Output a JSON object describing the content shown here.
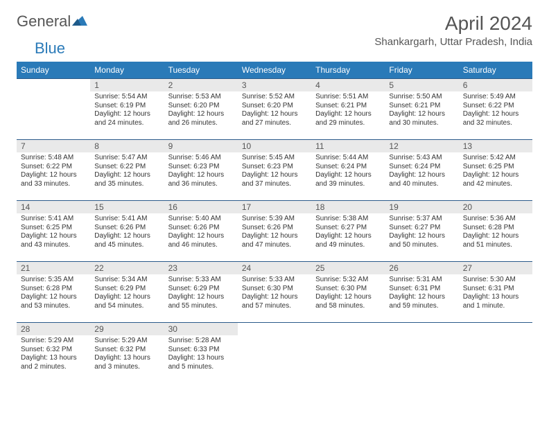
{
  "brand": {
    "word1": "General",
    "word2": "Blue"
  },
  "title": "April 2024",
  "location": "Shankargarh, Uttar Pradesh, India",
  "colors": {
    "header_bg": "#2a7ab8",
    "header_text": "#ffffff",
    "daynum_bg": "#e9e9e9",
    "cell_border": "#2a5a8a",
    "body_text": "#333333",
    "title_text": "#555555"
  },
  "dayHeaders": [
    "Sunday",
    "Monday",
    "Tuesday",
    "Wednesday",
    "Thursday",
    "Friday",
    "Saturday"
  ],
  "weeks": [
    [
      null,
      {
        "n": "1",
        "sr": "Sunrise: 5:54 AM",
        "ss": "Sunset: 6:19 PM",
        "dl": "Daylight: 12 hours and 24 minutes."
      },
      {
        "n": "2",
        "sr": "Sunrise: 5:53 AM",
        "ss": "Sunset: 6:20 PM",
        "dl": "Daylight: 12 hours and 26 minutes."
      },
      {
        "n": "3",
        "sr": "Sunrise: 5:52 AM",
        "ss": "Sunset: 6:20 PM",
        "dl": "Daylight: 12 hours and 27 minutes."
      },
      {
        "n": "4",
        "sr": "Sunrise: 5:51 AM",
        "ss": "Sunset: 6:21 PM",
        "dl": "Daylight: 12 hours and 29 minutes."
      },
      {
        "n": "5",
        "sr": "Sunrise: 5:50 AM",
        "ss": "Sunset: 6:21 PM",
        "dl": "Daylight: 12 hours and 30 minutes."
      },
      {
        "n": "6",
        "sr": "Sunrise: 5:49 AM",
        "ss": "Sunset: 6:22 PM",
        "dl": "Daylight: 12 hours and 32 minutes."
      }
    ],
    [
      {
        "n": "7",
        "sr": "Sunrise: 5:48 AM",
        "ss": "Sunset: 6:22 PM",
        "dl": "Daylight: 12 hours and 33 minutes."
      },
      {
        "n": "8",
        "sr": "Sunrise: 5:47 AM",
        "ss": "Sunset: 6:22 PM",
        "dl": "Daylight: 12 hours and 35 minutes."
      },
      {
        "n": "9",
        "sr": "Sunrise: 5:46 AM",
        "ss": "Sunset: 6:23 PM",
        "dl": "Daylight: 12 hours and 36 minutes."
      },
      {
        "n": "10",
        "sr": "Sunrise: 5:45 AM",
        "ss": "Sunset: 6:23 PM",
        "dl": "Daylight: 12 hours and 37 minutes."
      },
      {
        "n": "11",
        "sr": "Sunrise: 5:44 AM",
        "ss": "Sunset: 6:24 PM",
        "dl": "Daylight: 12 hours and 39 minutes."
      },
      {
        "n": "12",
        "sr": "Sunrise: 5:43 AM",
        "ss": "Sunset: 6:24 PM",
        "dl": "Daylight: 12 hours and 40 minutes."
      },
      {
        "n": "13",
        "sr": "Sunrise: 5:42 AM",
        "ss": "Sunset: 6:25 PM",
        "dl": "Daylight: 12 hours and 42 minutes."
      }
    ],
    [
      {
        "n": "14",
        "sr": "Sunrise: 5:41 AM",
        "ss": "Sunset: 6:25 PM",
        "dl": "Daylight: 12 hours and 43 minutes."
      },
      {
        "n": "15",
        "sr": "Sunrise: 5:41 AM",
        "ss": "Sunset: 6:26 PM",
        "dl": "Daylight: 12 hours and 45 minutes."
      },
      {
        "n": "16",
        "sr": "Sunrise: 5:40 AM",
        "ss": "Sunset: 6:26 PM",
        "dl": "Daylight: 12 hours and 46 minutes."
      },
      {
        "n": "17",
        "sr": "Sunrise: 5:39 AM",
        "ss": "Sunset: 6:26 PM",
        "dl": "Daylight: 12 hours and 47 minutes."
      },
      {
        "n": "18",
        "sr": "Sunrise: 5:38 AM",
        "ss": "Sunset: 6:27 PM",
        "dl": "Daylight: 12 hours and 49 minutes."
      },
      {
        "n": "19",
        "sr": "Sunrise: 5:37 AM",
        "ss": "Sunset: 6:27 PM",
        "dl": "Daylight: 12 hours and 50 minutes."
      },
      {
        "n": "20",
        "sr": "Sunrise: 5:36 AM",
        "ss": "Sunset: 6:28 PM",
        "dl": "Daylight: 12 hours and 51 minutes."
      }
    ],
    [
      {
        "n": "21",
        "sr": "Sunrise: 5:35 AM",
        "ss": "Sunset: 6:28 PM",
        "dl": "Daylight: 12 hours and 53 minutes."
      },
      {
        "n": "22",
        "sr": "Sunrise: 5:34 AM",
        "ss": "Sunset: 6:29 PM",
        "dl": "Daylight: 12 hours and 54 minutes."
      },
      {
        "n": "23",
        "sr": "Sunrise: 5:33 AM",
        "ss": "Sunset: 6:29 PM",
        "dl": "Daylight: 12 hours and 55 minutes."
      },
      {
        "n": "24",
        "sr": "Sunrise: 5:33 AM",
        "ss": "Sunset: 6:30 PM",
        "dl": "Daylight: 12 hours and 57 minutes."
      },
      {
        "n": "25",
        "sr": "Sunrise: 5:32 AM",
        "ss": "Sunset: 6:30 PM",
        "dl": "Daylight: 12 hours and 58 minutes."
      },
      {
        "n": "26",
        "sr": "Sunrise: 5:31 AM",
        "ss": "Sunset: 6:31 PM",
        "dl": "Daylight: 12 hours and 59 minutes."
      },
      {
        "n": "27",
        "sr": "Sunrise: 5:30 AM",
        "ss": "Sunset: 6:31 PM",
        "dl": "Daylight: 13 hours and 1 minute."
      }
    ],
    [
      {
        "n": "28",
        "sr": "Sunrise: 5:29 AM",
        "ss": "Sunset: 6:32 PM",
        "dl": "Daylight: 13 hours and 2 minutes."
      },
      {
        "n": "29",
        "sr": "Sunrise: 5:29 AM",
        "ss": "Sunset: 6:32 PM",
        "dl": "Daylight: 13 hours and 3 minutes."
      },
      {
        "n": "30",
        "sr": "Sunrise: 5:28 AM",
        "ss": "Sunset: 6:33 PM",
        "dl": "Daylight: 13 hours and 5 minutes."
      },
      null,
      null,
      null,
      null
    ]
  ]
}
